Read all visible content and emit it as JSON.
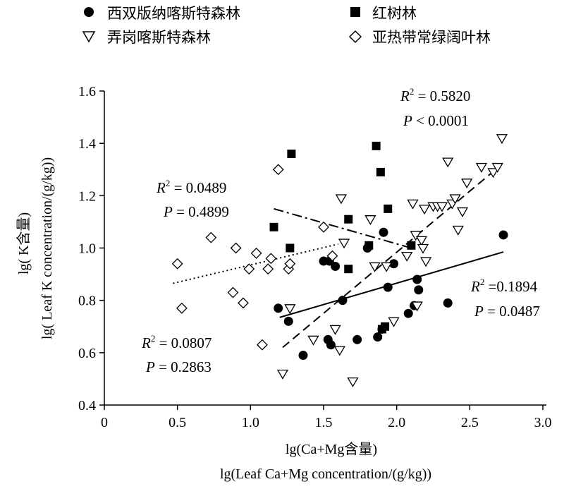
{
  "chart_data": {
    "type": "scatter",
    "xlabel": "lg(Ca+Mg含量)",
    "xlabel2": "lg(Leaf  Ca+Mg concentration/(g/kg))",
    "ylabel": "lg( K含量)",
    "ylabel2": "lg( Leaf  K concentration/(g/kg))",
    "xlim": [
      0,
      3.0
    ],
    "ylim": [
      0.4,
      1.6
    ],
    "xticks": [
      "0",
      "0.5",
      "1.0",
      "1.5",
      "2.0",
      "2.5",
      "3.0"
    ],
    "xtick_values": [
      0,
      0.5,
      1.0,
      1.5,
      2.0,
      2.5,
      3.0
    ],
    "yticks": [
      "0.4",
      "0.6",
      "0.8",
      "1.0",
      "1.2",
      "1.4",
      "1.6"
    ],
    "ytick_values": [
      0.4,
      0.6,
      0.8,
      1.0,
      1.2,
      1.4,
      1.6
    ],
    "grid": false,
    "legend_position": "top",
    "series": [
      {
        "name": "西双版纳喀斯特森林",
        "marker": "filled-circle",
        "points": [
          [
            1.19,
            0.77
          ],
          [
            1.26,
            0.72
          ],
          [
            1.36,
            0.59
          ],
          [
            1.5,
            0.95
          ],
          [
            1.54,
            0.95
          ],
          [
            1.53,
            0.65
          ],
          [
            1.55,
            0.63
          ],
          [
            1.58,
            0.93
          ],
          [
            1.63,
            0.8
          ],
          [
            1.73,
            0.65
          ],
          [
            1.8,
            1.0
          ],
          [
            1.87,
            0.66
          ],
          [
            1.9,
            0.69
          ],
          [
            1.91,
            1.06
          ],
          [
            1.94,
            0.85
          ],
          [
            1.98,
            0.94
          ],
          [
            2.08,
            0.75
          ],
          [
            2.12,
            0.78
          ],
          [
            2.14,
            0.88
          ],
          [
            2.15,
            0.84
          ],
          [
            2.35,
            0.79
          ],
          [
            2.73,
            1.05
          ]
        ]
      },
      {
        "name": "红树林",
        "marker": "filled-square",
        "points": [
          [
            1.16,
            1.08
          ],
          [
            1.27,
            1.0
          ],
          [
            1.28,
            1.36
          ],
          [
            1.67,
            1.11
          ],
          [
            1.67,
            0.92
          ],
          [
            1.81,
            1.01
          ],
          [
            1.86,
            1.39
          ],
          [
            1.89,
            1.29
          ],
          [
            1.9,
            0.69
          ],
          [
            1.92,
            0.7
          ],
          [
            1.94,
            1.15
          ],
          [
            2.1,
            1.01
          ]
        ]
      },
      {
        "name": "弄岗喀斯特森林",
        "marker": "open-down-triangle",
        "points": [
          [
            1.22,
            0.52
          ],
          [
            1.27,
            0.77
          ],
          [
            1.43,
            0.65
          ],
          [
            1.58,
            0.69
          ],
          [
            1.61,
            0.61
          ],
          [
            1.62,
            1.19
          ],
          [
            1.64,
            1.02
          ],
          [
            1.7,
            0.49
          ],
          [
            1.82,
            1.11
          ],
          [
            1.85,
            0.93
          ],
          [
            1.93,
            0.93
          ],
          [
            1.98,
            0.72
          ],
          [
            2.07,
            0.97
          ],
          [
            2.11,
            1.17
          ],
          [
            2.13,
            1.05
          ],
          [
            2.14,
            0.78
          ],
          [
            2.17,
            1.03
          ],
          [
            2.18,
            1.0
          ],
          [
            2.2,
            0.95
          ],
          [
            2.19,
            1.15
          ],
          [
            2.25,
            1.16
          ],
          [
            2.28,
            1.16
          ],
          [
            2.31,
            1.16
          ],
          [
            2.35,
            1.33
          ],
          [
            2.38,
            1.17
          ],
          [
            2.4,
            1.19
          ],
          [
            2.42,
            1.07
          ],
          [
            2.45,
            1.14
          ],
          [
            2.48,
            1.25
          ],
          [
            2.58,
            1.31
          ],
          [
            2.66,
            1.29
          ],
          [
            2.69,
            1.31
          ],
          [
            2.72,
            1.42
          ]
        ]
      },
      {
        "name": "亚热带常绿阔叶林",
        "marker": "open-diamond",
        "points": [
          [
            0.5,
            0.94
          ],
          [
            0.53,
            0.77
          ],
          [
            0.73,
            1.04
          ],
          [
            0.88,
            0.83
          ],
          [
            0.9,
            1.0
          ],
          [
            0.95,
            0.79
          ],
          [
            0.99,
            0.92
          ],
          [
            1.04,
            0.98
          ],
          [
            1.08,
            0.63
          ],
          [
            1.12,
            0.92
          ],
          [
            1.14,
            0.96
          ],
          [
            1.19,
            1.3
          ],
          [
            1.26,
            0.92
          ],
          [
            1.27,
            0.94
          ],
          [
            1.5,
            1.08
          ],
          [
            1.56,
            0.97
          ]
        ]
      }
    ],
    "fits": [
      {
        "series": "西双版纳喀斯特森林",
        "style": "solid",
        "x": [
          1.2,
          2.73
        ],
        "y": [
          0.735,
          0.985
        ],
        "r2": "0.1894",
        "p": "0.0487",
        "r2_sep": " =",
        "p_sep": " = "
      },
      {
        "series": "弄岗喀斯特森林",
        "style": "dashed",
        "x": [
          1.22,
          2.72
        ],
        "y": [
          0.62,
          1.32
        ],
        "r2": "0.5820",
        "p": "0.0001",
        "r2_sep": " = ",
        "p_sep": " < "
      },
      {
        "series": "红树林",
        "style": "dashdot",
        "x": [
          1.16,
          2.1
        ],
        "y": [
          1.15,
          1.0
        ],
        "r2": "0.0489",
        "p": "0.4899",
        "r2_sep": " = ",
        "p_sep": " = "
      },
      {
        "series": "亚热带常绿阔叶林",
        "style": "dotted",
        "x": [
          0.47,
          1.6
        ],
        "y": [
          0.865,
          1.015
        ],
        "r2": "0.0807",
        "p": "0.2863",
        "r2_sep": " = ",
        "p_sep": " = "
      }
    ]
  }
}
